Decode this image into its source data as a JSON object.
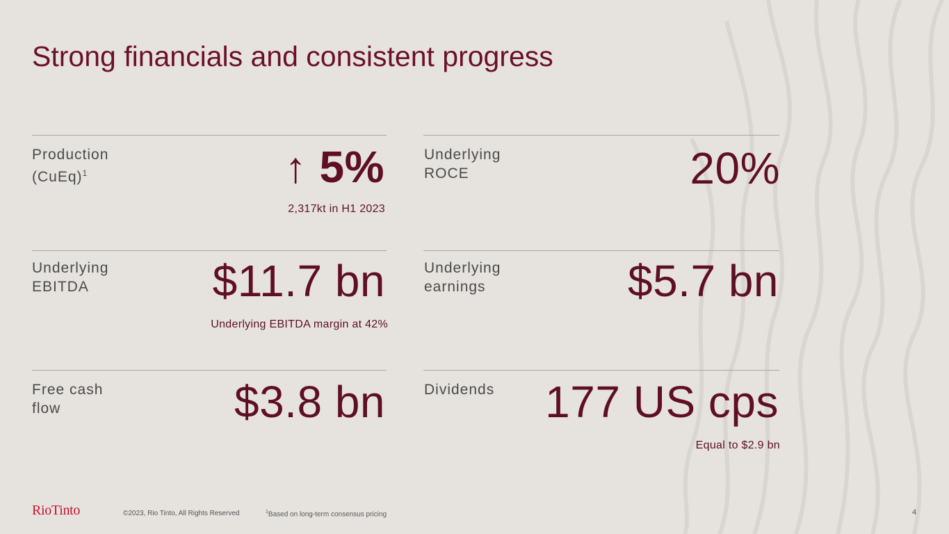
{
  "title": "Strong financials and consistent progress",
  "metrics": {
    "production": {
      "label_line1": "Production",
      "label_line2": "(CuEq)",
      "label_sup": "1",
      "arrow": "↑",
      "value": "5%",
      "sub": "2,317kt in H1 2023"
    },
    "roce": {
      "label_line1": "Underlying",
      "label_line2": "ROCE",
      "value": "20%"
    },
    "ebitda": {
      "label_line1": "Underlying",
      "label_line2": "EBITDA",
      "value": "$11.7 bn",
      "sub": "Underlying EBITDA margin at 42%"
    },
    "earnings": {
      "label_line1": "Underlying",
      "label_line2": "earnings",
      "value": "$5.7 bn"
    },
    "fcf": {
      "label_line1": "Free cash",
      "label_line2": "flow",
      "value": "$3.8 bn"
    },
    "dividends": {
      "label_line1": "Dividends",
      "value": "177 US cps",
      "sub": "Equal to $2.9 bn"
    }
  },
  "footer": {
    "logo": "RioTinto",
    "copyright": "©2023, Rio Tinto, All Rights Reserved",
    "footnote_marker": "1",
    "footnote": "Based on long-term consensus pricing",
    "page_number": "4"
  },
  "colors": {
    "accent": "#5e0f24",
    "background": "#e6e3de",
    "brand_red": "#c8102e"
  }
}
